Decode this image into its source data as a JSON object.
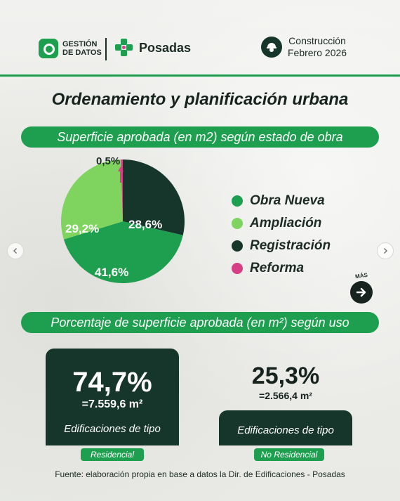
{
  "header": {
    "gestion_line1": "GESTIÓN",
    "gestion_line2": "DE DATOS",
    "posadas": "Posadas",
    "period_line1": "Construcción",
    "period_line2": "Febrero 2026"
  },
  "title": "Ordenamiento y planificación urbana",
  "section1": {
    "heading": "Superficie aprobada (en m2) según estado de obra"
  },
  "legend": [
    {
      "label": "Obra Nueva",
      "color": "#1e9e4f"
    },
    {
      "label": "Ampliación",
      "color": "#7fd45f"
    },
    {
      "label": "Registración",
      "color": "#17362b"
    },
    {
      "label": "Reforma",
      "color": "#d63e86"
    }
  ],
  "chart_data": {
    "type": "pie",
    "categories": [
      "Obra Nueva",
      "Ampliación",
      "Registración",
      "Reforma"
    ],
    "values": [
      41.6,
      29.2,
      28.6,
      0.5
    ],
    "labels": [
      "41,6%",
      "29,2%",
      "28,6%",
      "0,5%"
    ],
    "colors": [
      "#1e9e4f",
      "#7fd45f",
      "#17362b",
      "#d63e86"
    ],
    "legend_placement": "right"
  },
  "more": {
    "label": "MÁS"
  },
  "section2": {
    "heading": "Porcentaje de superficie aprobada (en m²) según uso",
    "residencial": {
      "percent": "74,7%",
      "area": "=7.559,6 m²",
      "caption": "Edificaciones de tipo",
      "badge": "Residencial"
    },
    "no_residencial": {
      "percent": "25,3%",
      "area": "=2.566,4 m²",
      "caption": "Edificaciones de tipo",
      "badge": "No Residencial"
    }
  },
  "source": "Fuente: elaboración propia en base a datos la Dir. de Edificaciones - Posadas"
}
